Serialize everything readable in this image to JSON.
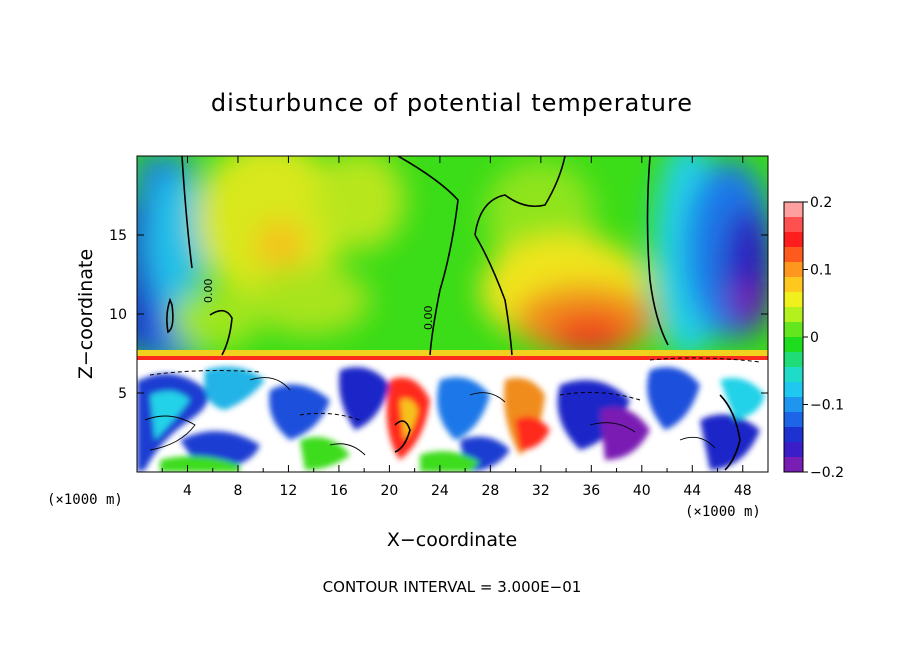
{
  "chart_data": {
    "type": "heatmap",
    "title": "disturbunce of potential temperature",
    "xlabel": "X−coordinate",
    "ylabel": "Z−coordinate",
    "x_unit": "(×1000 m)",
    "z_unit": "(×1000 m)",
    "xlim": [
      0,
      50
    ],
    "ylim": [
      0,
      20
    ],
    "x_ticks": [
      "4",
      "8",
      "12",
      "16",
      "20",
      "24",
      "28",
      "32",
      "36",
      "40",
      "44",
      "48"
    ],
    "x_tick_values": [
      4,
      8,
      12,
      16,
      20,
      24,
      28,
      32,
      36,
      40,
      44,
      48
    ],
    "y_ticks": [
      "5",
      "10",
      "15"
    ],
    "y_tick_values": [
      5,
      10,
      15
    ],
    "colorbar": {
      "range": [
        -0.2,
        0.2
      ],
      "tick_labels": [
        "0.2",
        "0.1",
        "0",
        "−0.1",
        "−0.2"
      ],
      "tick_values": [
        0.2,
        0.1,
        0,
        -0.1,
        -0.2
      ]
    },
    "contour_labels": [
      {
        "text": "0.00",
        "x": 23.5,
        "z": 9.5
      },
      {
        "text": "0.00",
        "x": 5.0,
        "z": 11.5
      }
    ],
    "footnote": "CONTOUR INTERVAL = 3.000E−01",
    "grid": false
  }
}
